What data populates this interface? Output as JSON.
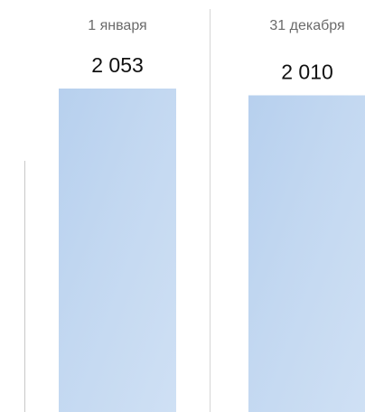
{
  "chart_data": {
    "type": "bar",
    "categories": [
      "1 января",
      "31 декабря"
    ],
    "values": [
      2053,
      2010
    ],
    "value_labels": [
      "2 053",
      "2 010"
    ],
    "color": "#bcd4ef",
    "ylim": [
      0,
      2615
    ]
  }
}
